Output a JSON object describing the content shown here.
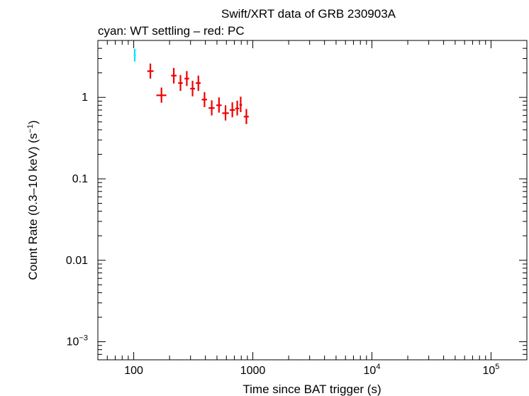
{
  "chart_data": {
    "type": "scatter",
    "title": "Swift/XRT data of GRB 230903A",
    "subtitle": "cyan: WT settling – red: PC",
    "xlabel": "Time since BAT trigger (s)",
    "ylabel": "Count Rate (0.3–10 keV) (s",
    "ylabel_sup": "−1",
    "ylabel_close": ")",
    "x_scale": "log",
    "y_scale": "log",
    "xlim": [
      50,
      200000
    ],
    "ylim": [
      0.0006,
      5
    ],
    "x_ticks": [
      {
        "value": 100,
        "label": "100"
      },
      {
        "value": 1000,
        "label": "1000"
      },
      {
        "value": 10000,
        "base": "10",
        "exp": "4"
      },
      {
        "value": 100000,
        "base": "10",
        "exp": "5"
      }
    ],
    "y_ticks": [
      {
        "value": 1,
        "label": "1"
      },
      {
        "value": 0.1,
        "label": "0.1"
      },
      {
        "value": 0.01,
        "label": "0.01"
      },
      {
        "value": 0.001,
        "base": "10",
        "exp": "−3"
      }
    ],
    "grid": false,
    "series": [
      {
        "name": "WT settling",
        "color": "#00e5ff",
        "points": [
          {
            "x": 102,
            "xlo": 100,
            "xhi": 104,
            "y": 3.3,
            "ylo": 2.75,
            "yhi": 3.95
          }
        ]
      },
      {
        "name": "PC",
        "color": "#ee0000",
        "points": [
          {
            "x": 138,
            "xlo": 130,
            "xhi": 147,
            "y": 2.1,
            "ylo": 1.7,
            "yhi": 2.6
          },
          {
            "x": 171,
            "xlo": 155,
            "xhi": 188,
            "y": 1.06,
            "ylo": 0.86,
            "yhi": 1.32
          },
          {
            "x": 217,
            "xlo": 206,
            "xhi": 229,
            "y": 1.85,
            "ylo": 1.48,
            "yhi": 2.3
          },
          {
            "x": 247,
            "xlo": 236,
            "xhi": 258,
            "y": 1.5,
            "ylo": 1.2,
            "yhi": 1.88
          },
          {
            "x": 279,
            "xlo": 267,
            "xhi": 292,
            "y": 1.7,
            "ylo": 1.38,
            "yhi": 2.1
          },
          {
            "x": 312,
            "xlo": 298,
            "xhi": 327,
            "y": 1.28,
            "ylo": 1.03,
            "yhi": 1.6
          },
          {
            "x": 349,
            "xlo": 332,
            "xhi": 365,
            "y": 1.5,
            "ylo": 1.2,
            "yhi": 1.85
          },
          {
            "x": 393,
            "xlo": 372,
            "xhi": 413,
            "y": 0.94,
            "ylo": 0.76,
            "yhi": 1.16
          },
          {
            "x": 452,
            "xlo": 425,
            "xhi": 478,
            "y": 0.74,
            "ylo": 0.6,
            "yhi": 0.92
          },
          {
            "x": 520,
            "xlo": 493,
            "xhi": 548,
            "y": 0.8,
            "ylo": 0.65,
            "yhi": 1.0
          },
          {
            "x": 590,
            "xlo": 553,
            "xhi": 629,
            "y": 0.64,
            "ylo": 0.52,
            "yhi": 0.8
          },
          {
            "x": 673,
            "xlo": 640,
            "xhi": 709,
            "y": 0.7,
            "ylo": 0.57,
            "yhi": 0.87
          },
          {
            "x": 740,
            "xlo": 712,
            "xhi": 768,
            "y": 0.73,
            "ylo": 0.6,
            "yhi": 0.91
          },
          {
            "x": 791,
            "xlo": 772,
            "xhi": 812,
            "y": 0.81,
            "ylo": 0.66,
            "yhi": 1.02
          },
          {
            "x": 883,
            "xlo": 840,
            "xhi": 925,
            "y": 0.58,
            "ylo": 0.47,
            "yhi": 0.72
          }
        ]
      }
    ]
  }
}
